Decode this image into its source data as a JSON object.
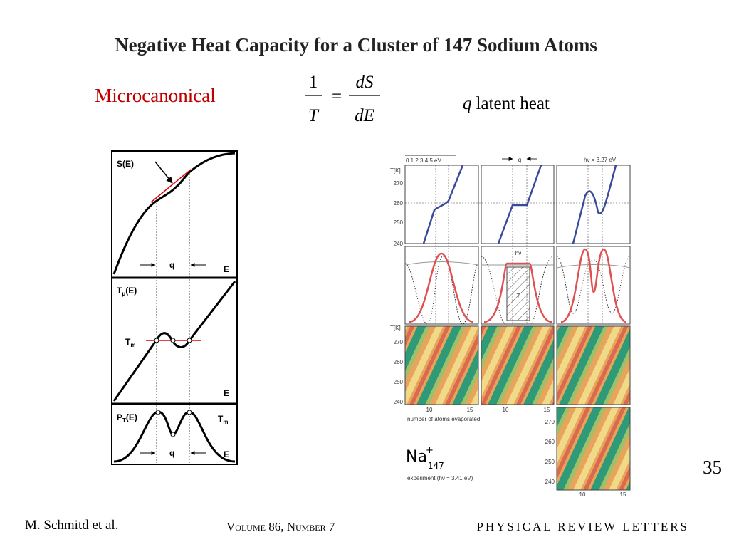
{
  "title": "Negative Heat Capacity for a Cluster of 147 Sodium Atoms",
  "ensemble": "Microcanonical",
  "equation": {
    "lhs_numerator": "1",
    "lhs_denominator": "T",
    "equals": "=",
    "rhs_numerator": "dS",
    "rhs_denominator": "dE"
  },
  "latent": {
    "symbol": "q",
    "text": "latent heat"
  },
  "left_figure": {
    "entropy": {
      "label": "S(E)",
      "q": "q",
      "axis": "E"
    },
    "temperature": {
      "label": {
        "main": "T",
        "sub": "μ",
        "rest": "(E)"
      },
      "tm": {
        "main": "T",
        "sub": "m"
      },
      "axis": "E"
    },
    "probability": {
      "label": {
        "main": "P",
        "sub": "T",
        "rest": "(E)"
      },
      "tm": {
        "main": "T",
        "sub": "m"
      },
      "q": "q",
      "axis": "E"
    }
  },
  "right_figure": {
    "energy_scale": "0 1 2 3 4 5 eV",
    "q": "q",
    "photon_energy": "hν = 3.27 eV",
    "temperature_unit": "T[K]",
    "temperature_ticks": [
      "270",
      "260",
      "250",
      "240"
    ],
    "hv": "hν",
    "t": "T",
    "x_ticks": [
      "10",
      "15"
    ],
    "x_label": "number of atoms evaporated",
    "species": {
      "symbol": "Na",
      "charge": "+",
      "size": "147"
    },
    "experiment": "experiment (hν = 3.41 eV)"
  },
  "slide_number": "35",
  "author": "M. Schmitd et al.",
  "journal": {
    "volume": "Volume 86, Number 7",
    "name": "PHYSICAL REVIEW LETTERS"
  }
}
